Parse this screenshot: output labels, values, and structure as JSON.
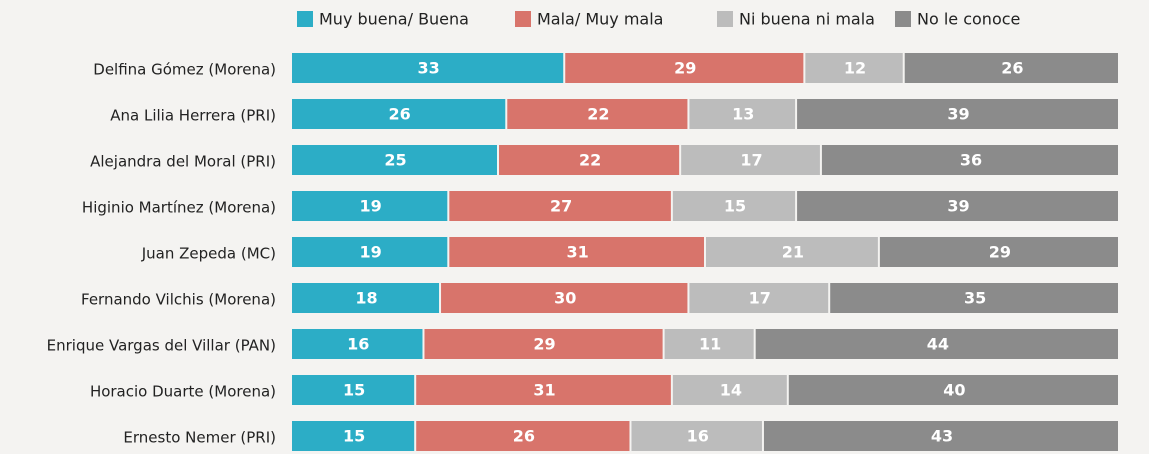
{
  "chart_data": {
    "type": "bar",
    "orientation": "horizontal",
    "stacked": true,
    "xlim": [
      0,
      100
    ],
    "legend": "top",
    "categories": [
      "Delfina Gómez (Morena)",
      "Ana Lilia Herrera (PRI)",
      "Alejandra del Moral (PRI)",
      "Higinio Martínez (Morena)",
      "Juan Zepeda (MC)",
      "Fernando Vilchis (Morena)",
      "Enrique Vargas del Villar (PAN)",
      "Horacio Duarte (Morena)",
      "Ernesto Nemer (PRI)"
    ],
    "series": [
      {
        "name": "Muy buena/ Buena",
        "color": "#2cadc6",
        "values": [
          33,
          26,
          25,
          19,
          19,
          18,
          16,
          15,
          15
        ]
      },
      {
        "name": "Mala/ Muy mala",
        "color": "#d8746b",
        "values": [
          29,
          22,
          22,
          27,
          31,
          30,
          29,
          31,
          26
        ]
      },
      {
        "name": "Ni buena ni mala",
        "color": "#bcbcbc",
        "values": [
          12,
          13,
          17,
          15,
          21,
          17,
          11,
          14,
          16
        ]
      },
      {
        "name": "No le conoce",
        "color": "#8b8b8b",
        "values": [
          26,
          39,
          36,
          39,
          29,
          35,
          44,
          40,
          43
        ]
      }
    ]
  }
}
